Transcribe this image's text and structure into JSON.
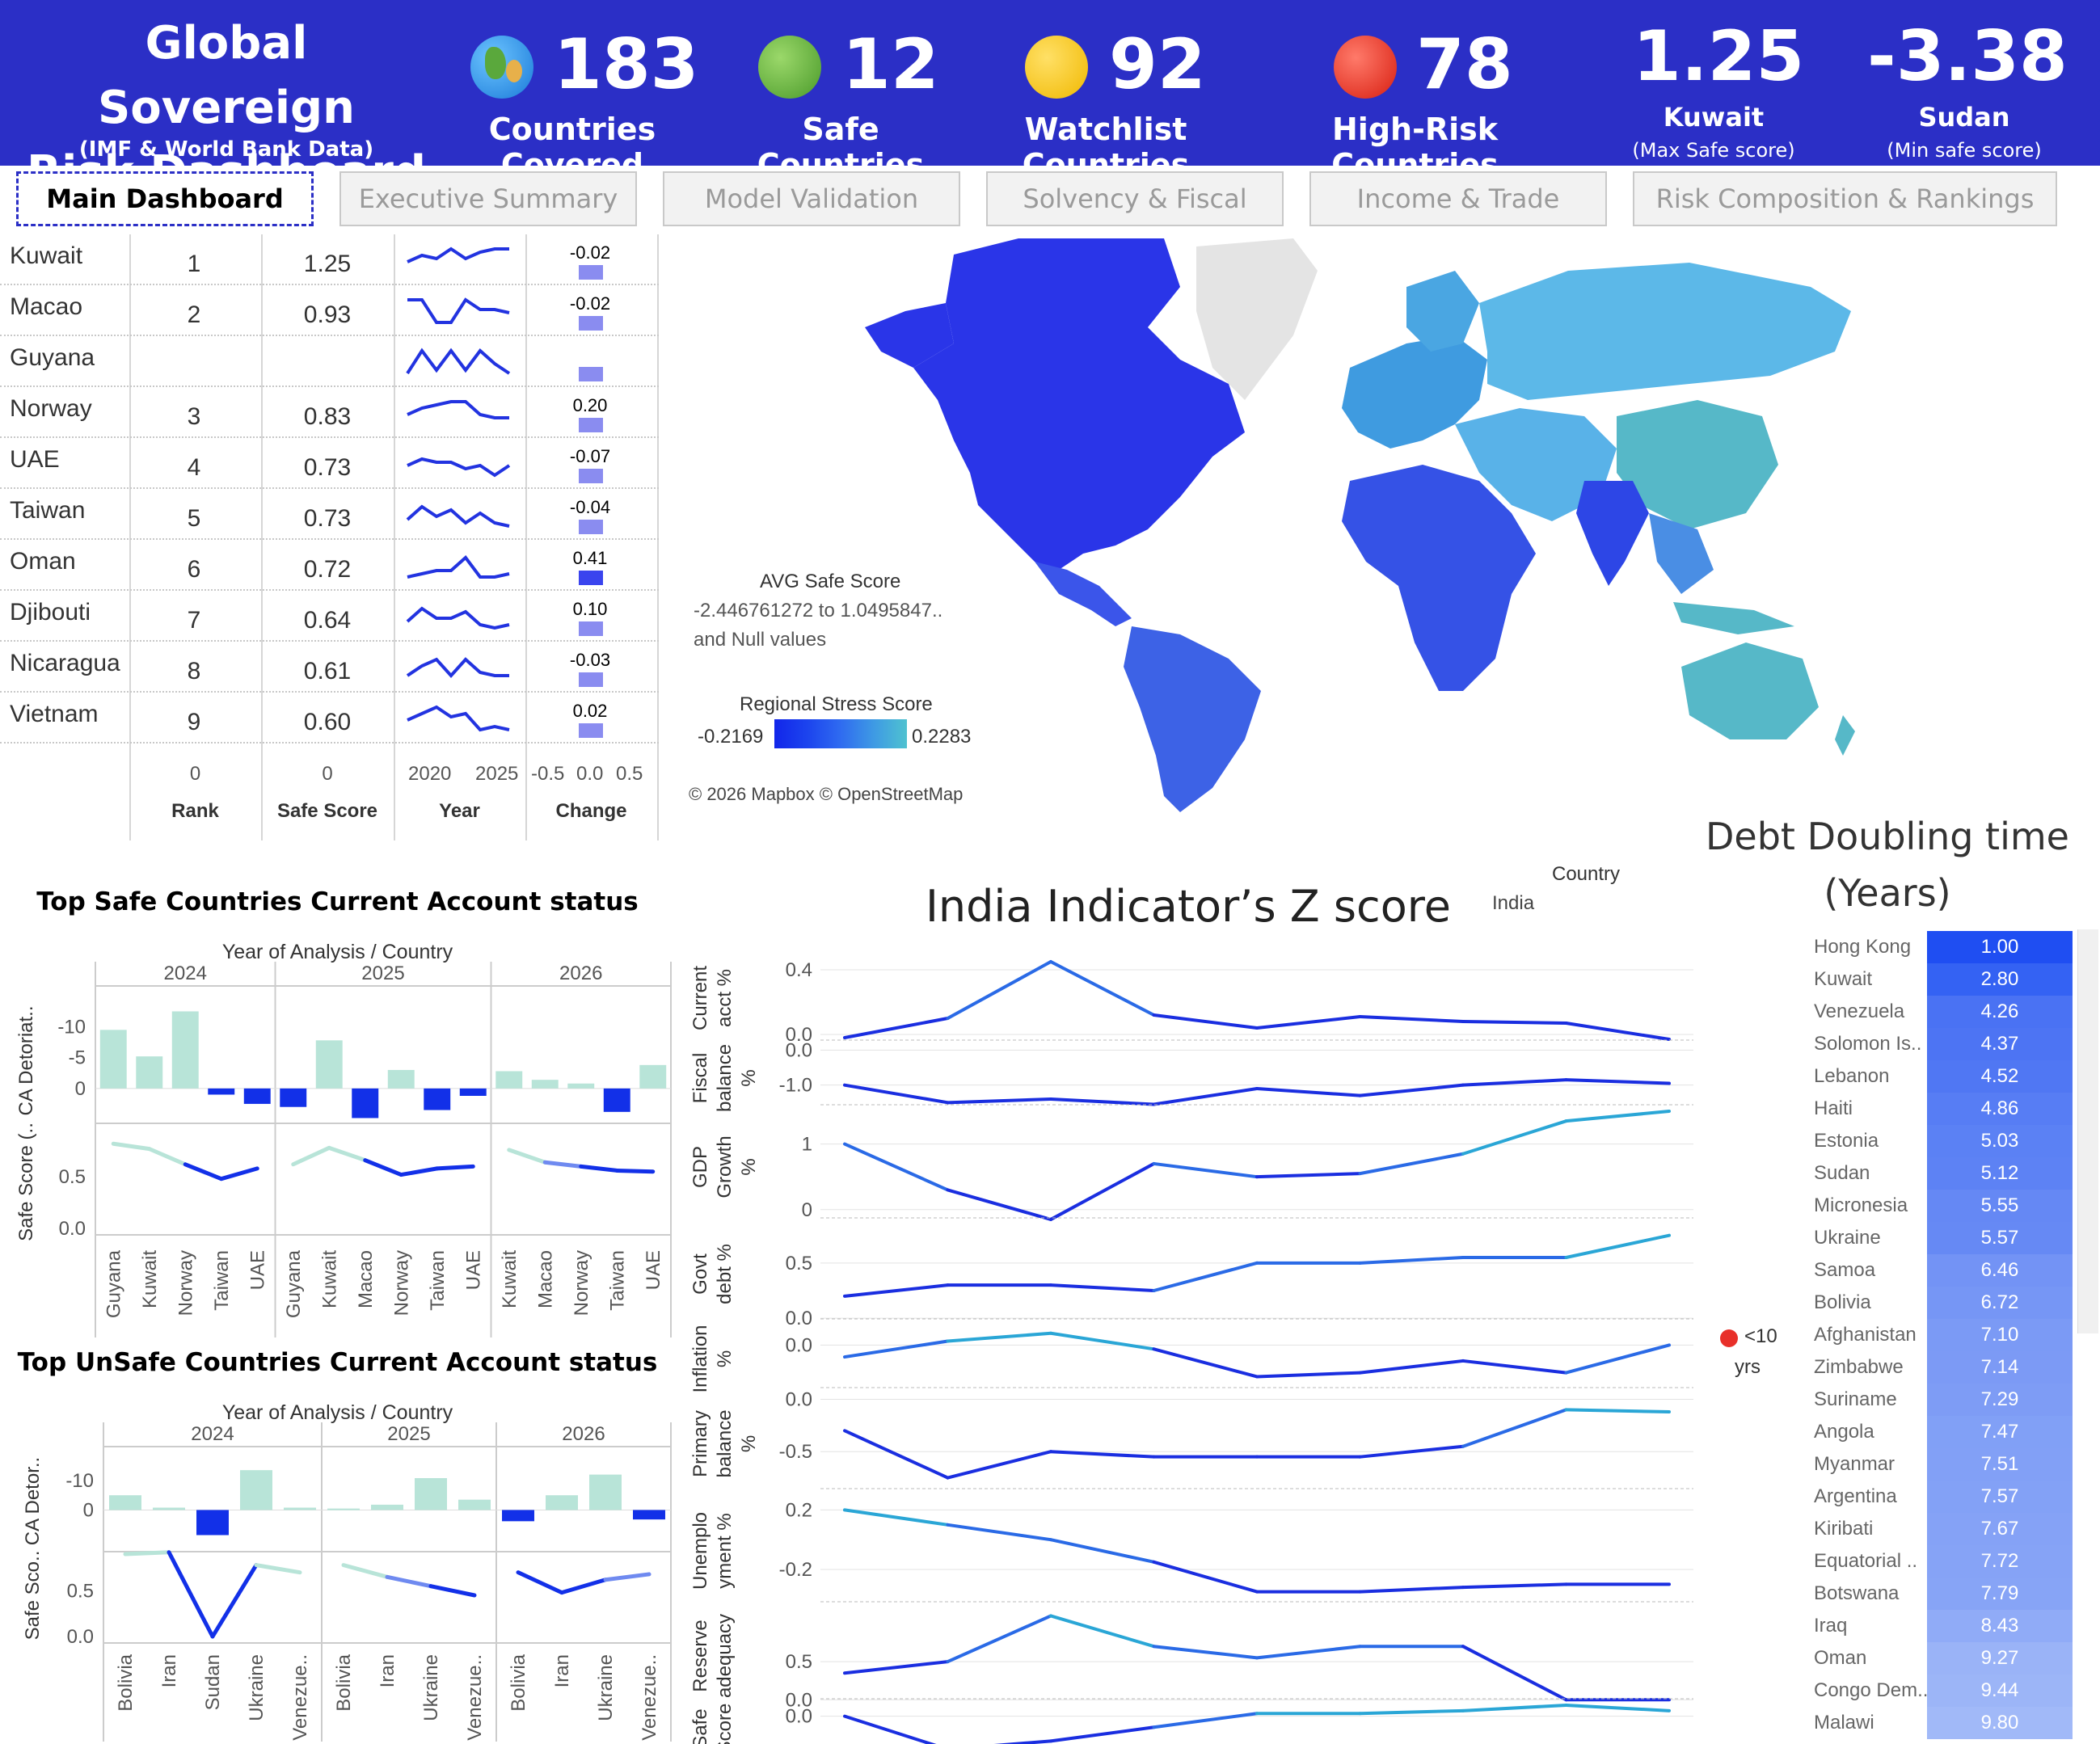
{
  "header": {
    "title_line1": "Global Sovereign",
    "title_line2": "Risk Dashboard",
    "subtitle": "(IMF & World Bank Data)",
    "kpis": [
      {
        "icon": "globe-icon",
        "value": "183",
        "label": "Countries Covered"
      },
      {
        "icon": "green-circle-icon",
        "value": "12",
        "label": "Safe Countries"
      },
      {
        "icon": "yellow-circle-icon",
        "value": "92",
        "label": "Watchlist Countries"
      },
      {
        "icon": "red-circle-icon",
        "value": "78",
        "label": "High-Risk Countries"
      }
    ],
    "max_score": {
      "value": "1.25",
      "country": "Kuwait",
      "note": "(Max Safe score)"
    },
    "min_score": {
      "value": "-3.38",
      "country": "Sudan",
      "note": "(Min safe score)"
    }
  },
  "tabs": [
    "Main Dashboard",
    "Executive Summary",
    "Model Validation",
    "Solvency & Fiscal",
    "Income & Trade",
    "Risk Composition & Rankings"
  ],
  "ranking": {
    "rows": [
      {
        "country": "Kuwait",
        "rank": "1",
        "score": "1.25",
        "change": "-0.02"
      },
      {
        "country": "Macao",
        "rank": "2",
        "score": "0.93",
        "change": "-0.02"
      },
      {
        "country": "Guyana",
        "rank": "",
        "score": "",
        "change": ""
      },
      {
        "country": "Norway",
        "rank": "3",
        "score": "0.83",
        "change": "0.20"
      },
      {
        "country": "UAE",
        "rank": "4",
        "score": "0.73",
        "change": "-0.07"
      },
      {
        "country": "Taiwan",
        "rank": "5",
        "score": "0.73",
        "change": "-0.04"
      },
      {
        "country": "Oman",
        "rank": "6",
        "score": "0.72",
        "change": "0.41"
      },
      {
        "country": "Djibouti",
        "rank": "7",
        "score": "0.64",
        "change": "0.10"
      },
      {
        "country": "Nicaragua",
        "rank": "8",
        "score": "0.61",
        "change": "-0.03"
      },
      {
        "country": "Vietnam",
        "rank": "9",
        "score": "0.60",
        "change": "0.02"
      }
    ],
    "axis": {
      "rank_zero": "0",
      "score_zero": "0",
      "year_ticks": [
        "2020",
        "2025"
      ],
      "change_ticks": [
        "-0.5",
        "0.0",
        "0.5"
      ]
    },
    "columns": [
      "Rank",
      "Safe Score",
      "Year",
      "Change"
    ]
  },
  "map": {
    "legend1_title": "AVG Safe Score",
    "legend1_range": "-2.446761272 to 1.0495847..",
    "legend1_null": "and Null values",
    "legend2_title": "Regional Stress Score",
    "legend2_min": "-0.2169",
    "legend2_max": "0.2283",
    "attribution": "© 2026 Mapbox © OpenStreetMap"
  },
  "chart_data": [
    {
      "type": "bar",
      "title": "Top Safe Countries Current Account status",
      "header": "Year of Analysis / Country",
      "ylabel_top": "CA Detoriat..",
      "ylabel_bottom": "Safe Score (..",
      "y_ticks_top": [
        "0",
        "-5",
        "-10"
      ],
      "y_ticks_bottom": [
        "0.5",
        "0.0"
      ],
      "groups": [
        {
          "year": "2024",
          "countries": [
            "Guyana",
            "Kuwait",
            "Norway",
            "Taiwan",
            "UAE"
          ],
          "ca": [
            -9.5,
            -5.2,
            -12.5,
            1.0,
            2.5
          ],
          "safe": [
            0.82,
            0.77,
            0.62,
            0.48,
            0.58
          ]
        },
        {
          "year": "2025",
          "countries": [
            "Guyana",
            "Kuwait",
            "Macao",
            "Norway",
            "Taiwan",
            "UAE"
          ],
          "ca": [
            3.0,
            -7.8,
            4.8,
            -3.0,
            3.5,
            1.2
          ],
          "safe": [
            0.62,
            0.78,
            0.66,
            0.52,
            0.58,
            0.6
          ]
        },
        {
          "year": "2026",
          "countries": [
            "Kuwait",
            "Macao",
            "Norway",
            "Taiwan",
            "UAE"
          ],
          "ca": [
            -2.8,
            -1.4,
            -0.8,
            3.8,
            -3.8
          ],
          "safe": [
            0.76,
            0.64,
            0.6,
            0.56,
            0.55
          ]
        }
      ]
    },
    {
      "type": "bar",
      "title": "Top UnSafe Countries Current Account status",
      "header": "Year of Analysis / Country",
      "ylabel_top": "CA Detor..",
      "ylabel_bottom": "Safe Sco..",
      "y_ticks_top": [
        "0",
        "-10"
      ],
      "y_ticks_bottom": [
        "0.5",
        "0.0"
      ],
      "groups": [
        {
          "year": "2024",
          "countries": [
            "Bolivia",
            "Iran",
            "Sudan",
            "Ukraine",
            "Venezue.."
          ],
          "ca": [
            -5.0,
            -0.8,
            8.5,
            -13.5,
            -0.8
          ],
          "safe": [
            0.9,
            0.92,
            0.0,
            0.78,
            0.7
          ]
        },
        {
          "year": "2025",
          "countries": [
            "Bolivia",
            "Iran",
            "Ukraine",
            "Venezue.."
          ],
          "ca": [
            -0.5,
            -1.8,
            -10.8,
            -3.5
          ],
          "safe": [
            0.78,
            0.65,
            0.55,
            0.45
          ]
        },
        {
          "year": "2026",
          "countries": [
            "Bolivia",
            "Iran",
            "Ukraine",
            "Venezue.."
          ],
          "ca": [
            3.8,
            -5.0,
            -12.0,
            3.2
          ],
          "safe": [
            0.7,
            0.48,
            0.62,
            0.68
          ]
        }
      ]
    },
    {
      "type": "line",
      "title": "India Indicator’s Z score",
      "filter_label": "Country",
      "filter_value": "India",
      "panels": [
        {
          "label": [
            "Current",
            "acct %"
          ],
          "ticks": [
            {
              "v": 0.4,
              "t": "0.4"
            },
            {
              "v": 0.0,
              "t": "0.0"
            }
          ],
          "ylim": [
            -0.05,
            0.5
          ],
          "values": [
            -0.02,
            0.1,
            0.45,
            0.12,
            0.04,
            0.11,
            0.08,
            0.07,
            -0.03
          ]
        },
        {
          "label": [
            "Fiscal",
            "balance",
            "%"
          ],
          "ticks": [
            {
              "v": 0.0,
              "t": "0.0"
            },
            {
              "v": -1.0,
              "t": "-1.0"
            }
          ],
          "ylim": [
            -1.7,
            0.1
          ],
          "values": [
            -1.0,
            -1.5,
            -1.4,
            -1.55,
            -1.1,
            -1.3,
            -1.0,
            -0.85,
            -0.95
          ]
        },
        {
          "label": [
            "GDP",
            "Growth",
            "%"
          ],
          "ticks": [
            {
              "v": 1.0,
              "t": "1"
            },
            {
              "v": 0.0,
              "t": "0"
            }
          ],
          "ylim": [
            -0.2,
            1.5
          ],
          "values": [
            1.0,
            0.3,
            -0.15,
            0.7,
            0.5,
            0.55,
            0.85,
            1.35,
            1.5
          ]
        },
        {
          "label": [
            "Govt",
            "debt %"
          ],
          "ticks": [
            {
              "v": 0.5,
              "t": "0.5"
            },
            {
              "v": 0.0,
              "t": "0.0"
            }
          ],
          "ylim": [
            -0.05,
            0.85
          ],
          "values": [
            0.2,
            0.3,
            0.3,
            0.25,
            0.5,
            0.5,
            0.55,
            0.55,
            0.75
          ]
        },
        {
          "label": [
            "Inflation",
            "%"
          ],
          "ticks": [
            {
              "v": 0.0,
              "t": "0.0"
            }
          ],
          "ylim": [
            -0.6,
            0.25
          ],
          "values": [
            -0.15,
            0.05,
            0.15,
            -0.05,
            -0.4,
            -0.35,
            -0.2,
            -0.35,
            0.0
          ]
        },
        {
          "label": [
            "Primary",
            "balance",
            "%"
          ],
          "ticks": [
            {
              "v": 0.0,
              "t": "0.0"
            },
            {
              "v": -0.5,
              "t": "-0.5"
            }
          ],
          "ylim": [
            -0.9,
            0.05
          ],
          "values": [
            -0.3,
            -0.75,
            -0.5,
            -0.55,
            -0.55,
            -0.55,
            -0.45,
            -0.1,
            -0.12
          ]
        },
        {
          "label": [
            "Unemplo",
            "yment %"
          ],
          "ticks": [
            {
              "v": 0.2,
              "t": "0.2"
            },
            {
              "v": -0.2,
              "t": "-0.2"
            }
          ],
          "ylim": [
            -0.45,
            0.3
          ],
          "values": [
            0.2,
            0.1,
            0.0,
            -0.15,
            -0.35,
            -0.35,
            -0.32,
            -0.3,
            -0.3
          ]
        },
        {
          "label": [
            "Reserve",
            "adequacy"
          ],
          "ticks": [
            {
              "v": 0.5,
              "t": "0.5"
            },
            {
              "v": 0.0,
              "t": "0.0"
            }
          ],
          "ylim": [
            -0.05,
            1.2
          ],
          "values": [
            0.35,
            0.5,
            1.1,
            0.7,
            0.55,
            0.7,
            0.7,
            0.0,
            0.0
          ]
        },
        {
          "label": [
            "Safe",
            "Score"
          ],
          "ticks": [
            {
              "v": 0.0,
              "t": "0.0"
            }
          ],
          "ylim": [
            -0.65,
            0.2
          ],
          "values": [
            0.0,
            -0.6,
            -0.45,
            -0.2,
            0.05,
            0.05,
            0.1,
            0.2,
            0.1
          ]
        }
      ]
    }
  ],
  "debt": {
    "title_line1": "Debt Doubling time",
    "title_line2": "(Years)",
    "legend_label": "<10",
    "legend_label2": "yrs",
    "rows": [
      {
        "country": "Hong Kong",
        "value": "1.00"
      },
      {
        "country": "Kuwait",
        "value": "2.80"
      },
      {
        "country": "Venezuela",
        "value": "4.26"
      },
      {
        "country": "Solomon Is..",
        "value": "4.37"
      },
      {
        "country": "Lebanon",
        "value": "4.52"
      },
      {
        "country": "Haiti",
        "value": "4.86"
      },
      {
        "country": "Estonia",
        "value": "5.03"
      },
      {
        "country": "Sudan",
        "value": "5.12"
      },
      {
        "country": "Micronesia",
        "value": "5.55"
      },
      {
        "country": "Ukraine",
        "value": "5.57"
      },
      {
        "country": "Samoa",
        "value": "6.46"
      },
      {
        "country": "Bolivia",
        "value": "6.72"
      },
      {
        "country": "Afghanistan",
        "value": "7.10"
      },
      {
        "country": "Zimbabwe",
        "value": "7.14"
      },
      {
        "country": "Suriname",
        "value": "7.29"
      },
      {
        "country": "Angola",
        "value": "7.47"
      },
      {
        "country": "Myanmar",
        "value": "7.51"
      },
      {
        "country": "Argentina",
        "value": "7.57"
      },
      {
        "country": "Kiribati",
        "value": "7.67"
      },
      {
        "country": "Equatorial ..",
        "value": "7.72"
      },
      {
        "country": "Botswana",
        "value": "7.79"
      },
      {
        "country": "Iraq",
        "value": "8.43"
      },
      {
        "country": "Oman",
        "value": "9.27"
      },
      {
        "country": "Congo Dem..",
        "value": "9.44"
      },
      {
        "country": "Malawi",
        "value": "9.80"
      }
    ]
  },
  "colors": {
    "header": "#2b2fc6",
    "strong_blue": "#1230e8",
    "light_teal": "#b8e4d8",
    "mid_blue": "#6f7df0"
  }
}
